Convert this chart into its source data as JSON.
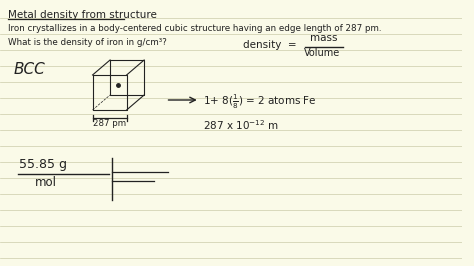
{
  "bg_color": "#FAFAE8",
  "line_color": "#CCCCAA",
  "text_color": "#222222",
  "title": "Metal density from structure",
  "line1": "Iron crystallizes in a body-centered cubic structure having an edge length of 287 pm.",
  "line2": "What is the density of iron in g/cm³?",
  "figsize": [
    4.74,
    2.66
  ],
  "dpi": 100
}
